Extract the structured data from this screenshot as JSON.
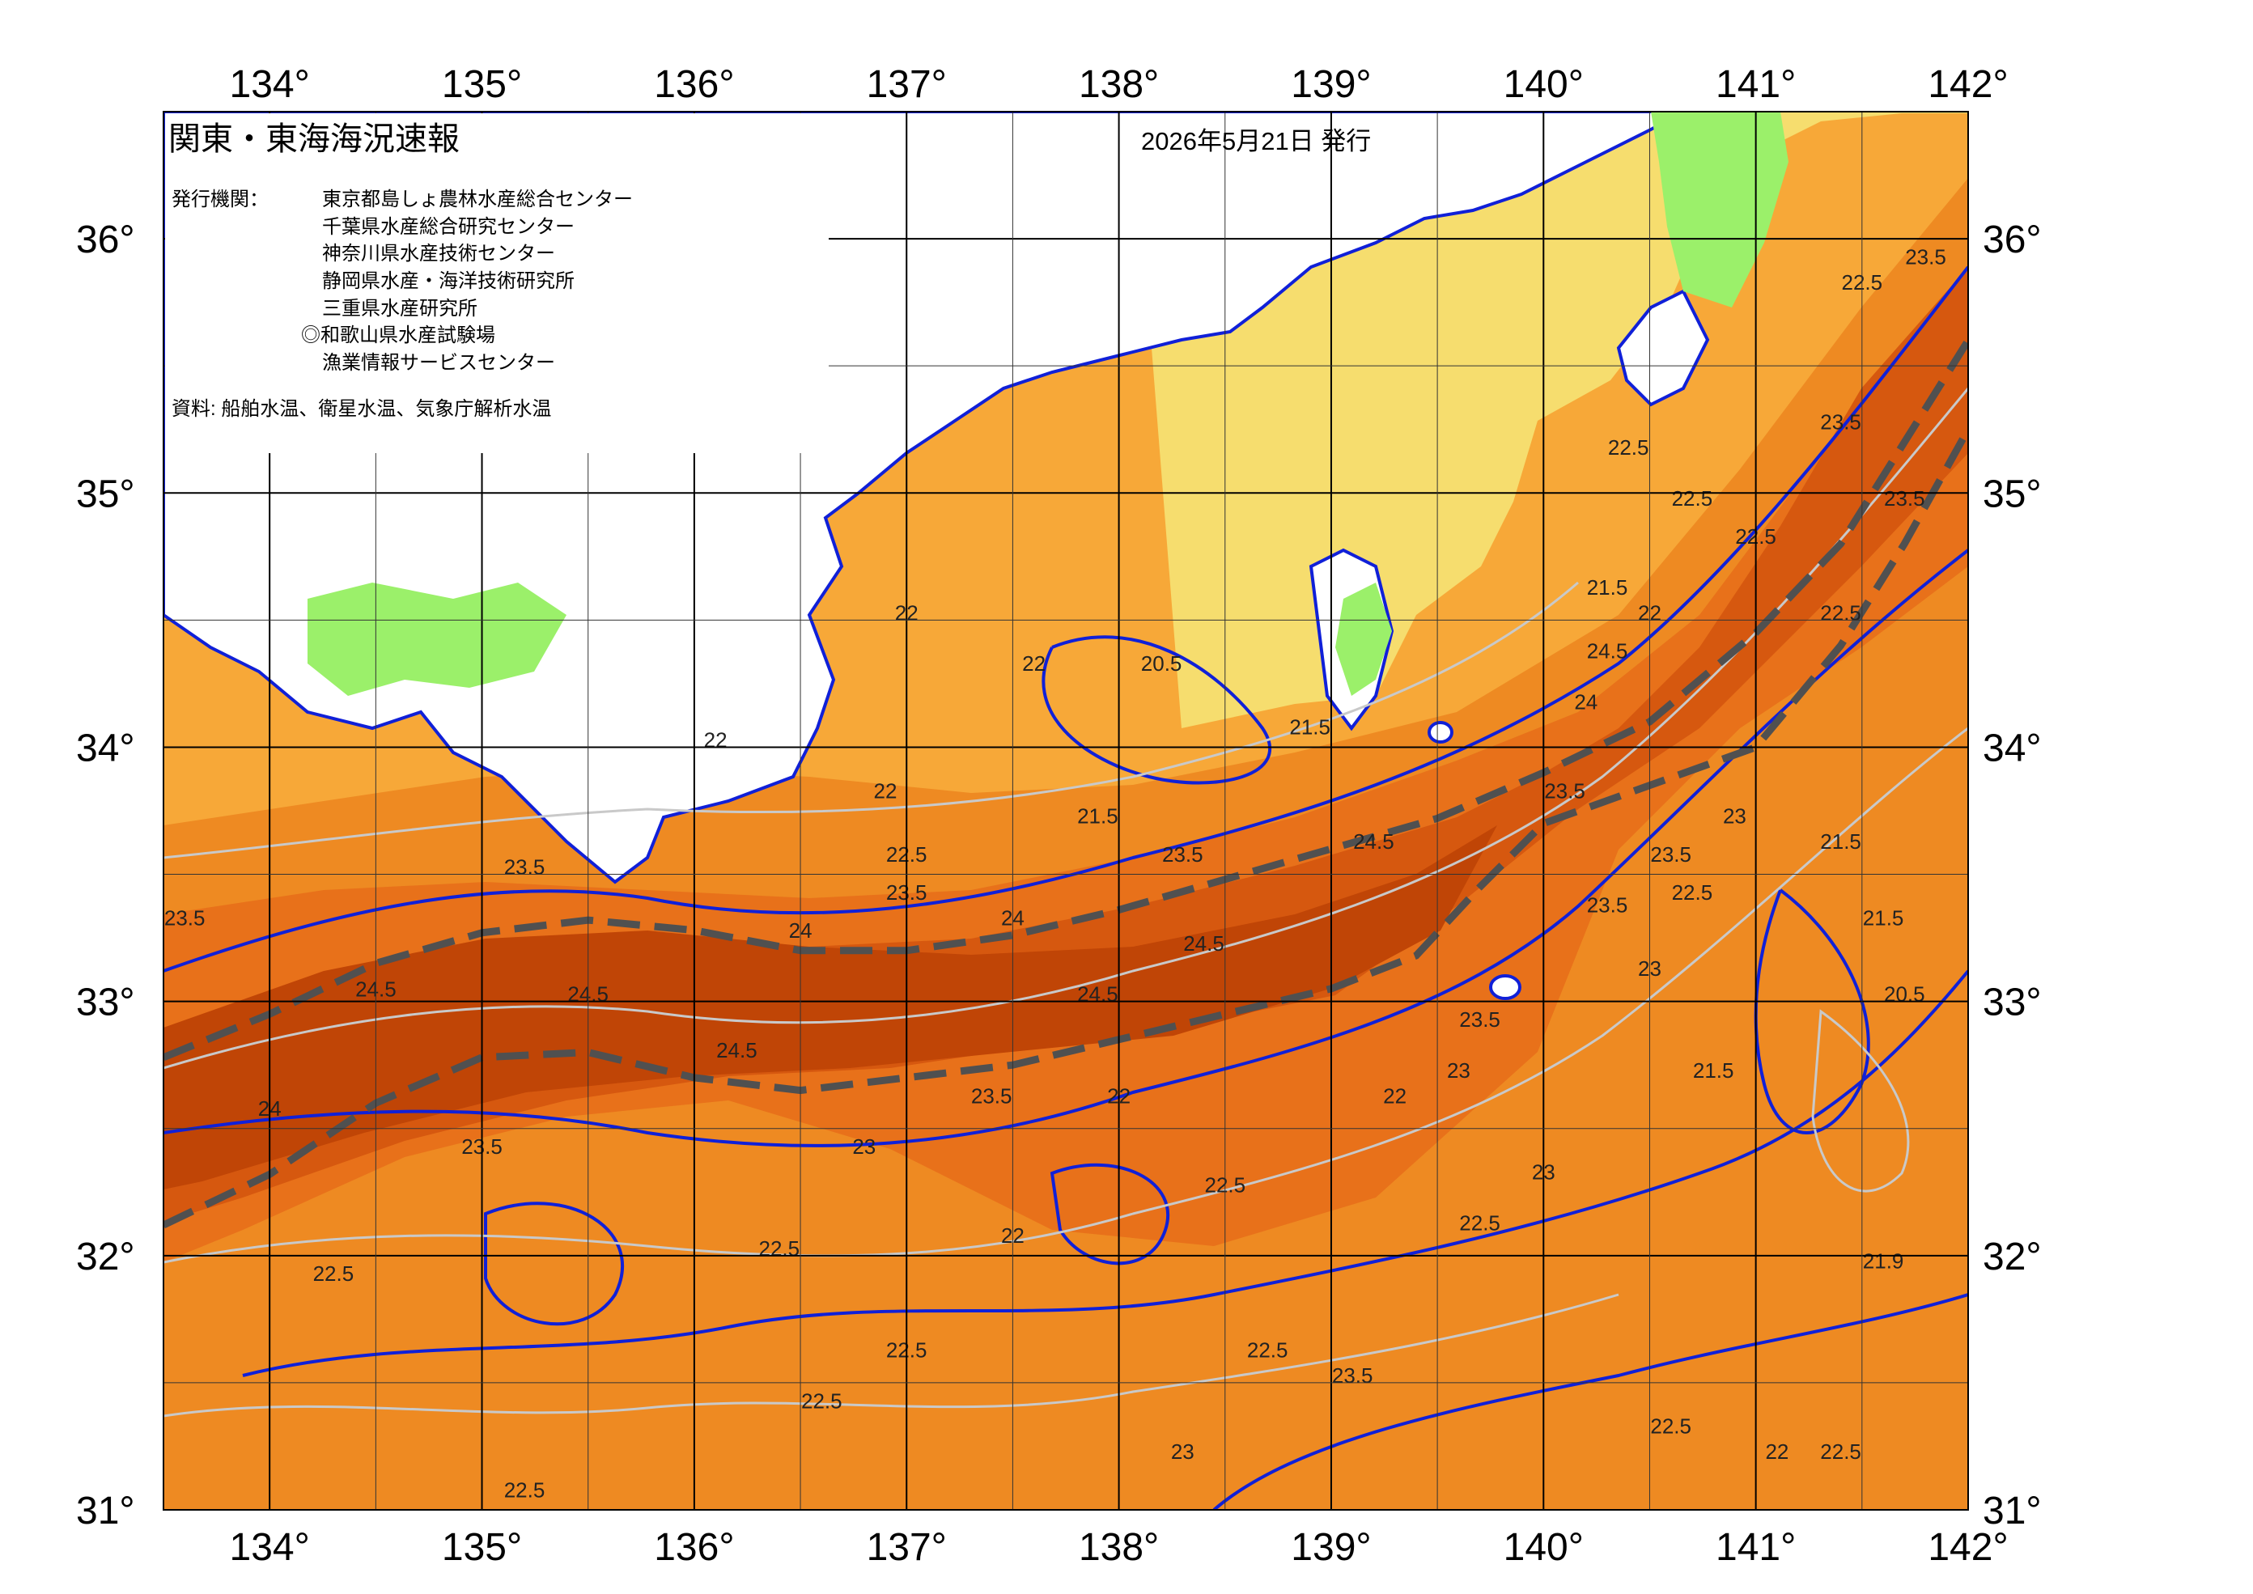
{
  "title": "関東・東海海況速報",
  "issue_date": "2026年5月21日 発行",
  "publisher": {
    "label": "発行機関：",
    "agencies": [
      "東京都島しょ農林水産総合センター",
      "千葉県水産総合研究センター",
      "神奈川県水産技術センター",
      "静岡県水産・海洋技術研究所",
      "三重県水産研究所",
      "◎和歌山県水産試験場",
      "漁業情報サービスセンター"
    ]
  },
  "source": "資料: 船舶水温、衛星水温、気象庁解析水温",
  "axes": {
    "lon_ticks": [
      "134°",
      "135°",
      "136°",
      "137°",
      "138°",
      "139°",
      "140°",
      "141°",
      "142°"
    ],
    "lat_ticks": [
      "36°",
      "35°",
      "34°",
      "33°",
      "32°",
      "31°"
    ]
  },
  "colors": {
    "land": "#ffffff",
    "sst_20": "#9bf06a",
    "sst_21": "#f6dd6e",
    "sst_22": "#f7a838",
    "sst_23": "#ee8a22",
    "sst_235": "#e8711a",
    "sst_24": "#d6580f",
    "sst_245": "#c04506",
    "contour_1deg": "#1020d8",
    "contour_half": "#c9c9c9",
    "kuroshio_axis": "#505050"
  },
  "contour_labels": [
    {
      "text": "23.5",
      "lon": 133.6,
      "lat": 33.3
    },
    {
      "text": "24.5",
      "lon": 134.5,
      "lat": 33.02
    },
    {
      "text": "24.5",
      "lon": 135.5,
      "lat": 33.0
    },
    {
      "text": "24",
      "lon": 134.0,
      "lat": 32.55
    },
    {
      "text": "23.5",
      "lon": 135.0,
      "lat": 32.4
    },
    {
      "text": "22.5",
      "lon": 134.3,
      "lat": 31.9
    },
    {
      "text": "24.5",
      "lon": 136.2,
      "lat": 32.78
    },
    {
      "text": "23.5",
      "lon": 135.2,
      "lat": 33.5
    },
    {
      "text": "24",
      "lon": 136.5,
      "lat": 33.25
    },
    {
      "text": "24",
      "lon": 137.5,
      "lat": 33.3
    },
    {
      "text": "24.5",
      "lon": 137.9,
      "lat": 33.0
    },
    {
      "text": "23.5",
      "lon": 137.4,
      "lat": 32.6
    },
    {
      "text": "23",
      "lon": 136.8,
      "lat": 32.4
    },
    {
      "text": "22.5",
      "lon": 136.4,
      "lat": 32.0
    },
    {
      "text": "22",
      "lon": 137.5,
      "lat": 32.05
    },
    {
      "text": "22.5",
      "lon": 137.0,
      "lat": 31.6
    },
    {
      "text": "22.5",
      "lon": 136.6,
      "lat": 31.4
    },
    {
      "text": "22.5",
      "lon": 135.2,
      "lat": 31.05
    },
    {
      "text": "22",
      "lon": 138.0,
      "lat": 32.6
    },
    {
      "text": "22.5",
      "lon": 138.5,
      "lat": 32.25
    },
    {
      "text": "22",
      "lon": 139.3,
      "lat": 32.6
    },
    {
      "text": "23",
      "lon": 139.6,
      "lat": 32.7
    },
    {
      "text": "22.5",
      "lon": 139.7,
      "lat": 32.1
    },
    {
      "text": "23",
      "lon": 140.0,
      "lat": 32.3
    },
    {
      "text": "22.5",
      "lon": 138.7,
      "lat": 31.6
    },
    {
      "text": "23.5",
      "lon": 139.1,
      "lat": 31.5
    },
    {
      "text": "23",
      "lon": 138.3,
      "lat": 31.2
    },
    {
      "text": "22.5",
      "lon": 140.6,
      "lat": 31.3
    },
    {
      "text": "22",
      "lon": 141.1,
      "lat": 31.2
    },
    {
      "text": "22.5",
      "lon": 141.4,
      "lat": 31.2
    },
    {
      "text": "21.9",
      "lon": 141.6,
      "lat": 31.95
    },
    {
      "text": "21.5",
      "lon": 140.8,
      "lat": 32.7
    },
    {
      "text": "20.5",
      "lon": 141.7,
      "lat": 33.0
    },
    {
      "text": "21.5",
      "lon": 141.6,
      "lat": 33.3
    },
    {
      "text": "21.5",
      "lon": 141.4,
      "lat": 33.6
    },
    {
      "text": "23.5",
      "lon": 140.3,
      "lat": 33.35
    },
    {
      "text": "23",
      "lon": 140.5,
      "lat": 33.1
    },
    {
      "text": "23.5",
      "lon": 140.6,
      "lat": 33.55
    },
    {
      "text": "22.5",
      "lon": 140.7,
      "lat": 33.4
    },
    {
      "text": "23",
      "lon": 140.9,
      "lat": 33.7
    },
    {
      "text": "23.5",
      "lon": 138.3,
      "lat": 33.55
    },
    {
      "text": "21.5",
      "lon": 137.9,
      "lat": 33.7
    },
    {
      "text": "22.5",
      "lon": 137.0,
      "lat": 33.55
    },
    {
      "text": "23.5",
      "lon": 137.0,
      "lat": 33.4
    },
    {
      "text": "22",
      "lon": 136.9,
      "lat": 33.8
    },
    {
      "text": "22",
      "lon": 137.6,
      "lat": 34.3
    },
    {
      "text": "22",
      "lon": 136.1,
      "lat": 34.0
    },
    {
      "text": "22",
      "lon": 137.0,
      "lat": 34.5
    },
    {
      "text": "20.5",
      "lon": 138.2,
      "lat": 34.3
    },
    {
      "text": "21.5",
      "lon": 138.9,
      "lat": 34.05
    },
    {
      "text": "21.5",
      "lon": 140.3,
      "lat": 34.6
    },
    {
      "text": "22",
      "lon": 140.5,
      "lat": 34.5
    },
    {
      "text": "24.5",
      "lon": 140.3,
      "lat": 34.35
    },
    {
      "text": "24",
      "lon": 140.2,
      "lat": 34.15
    },
    {
      "text": "22.5",
      "lon": 140.7,
      "lat": 34.95
    },
    {
      "text": "22.5",
      "lon": 140.4,
      "lat": 35.15
    },
    {
      "text": "23.5",
      "lon": 141.4,
      "lat": 35.25
    },
    {
      "text": "23.5",
      "lon": 141.7,
      "lat": 34.95
    },
    {
      "text": "22.5",
      "lon": 141.4,
      "lat": 34.5
    },
    {
      "text": "22.5",
      "lon": 141.5,
      "lat": 35.8
    },
    {
      "text": "23.5",
      "lon": 141.8,
      "lat": 35.9
    },
    {
      "text": "24.5",
      "lon": 138.4,
      "lat": 33.2
    },
    {
      "text": "24.5",
      "lon": 139.2,
      "lat": 33.6
    },
    {
      "text": "23.5",
      "lon": 139.7,
      "lat": 32.9
    },
    {
      "text": "23.5",
      "lon": 140.1,
      "lat": 33.8
    },
    {
      "text": "22.5",
      "lon": 141.0,
      "lat": 34.8
    }
  ],
  "chart_data": {
    "type": "map",
    "extent": {
      "lon": [
        133.5,
        142.0
      ],
      "lat": [
        31.0,
        36.5
      ]
    },
    "legend_units": "°C",
    "kuroshio_north_edge": [
      [
        133.5,
        32.78
      ],
      [
        134.0,
        32.95
      ],
      [
        134.5,
        33.15
      ],
      [
        135.0,
        33.27
      ],
      [
        135.5,
        33.32
      ],
      [
        136.0,
        33.28
      ],
      [
        136.5,
        33.2
      ],
      [
        137.0,
        33.2
      ],
      [
        137.5,
        33.26
      ],
      [
        138.0,
        33.36
      ],
      [
        138.5,
        33.48
      ],
      [
        139.0,
        33.6
      ],
      [
        139.5,
        33.72
      ],
      [
        140.0,
        33.9
      ],
      [
        140.5,
        34.1
      ],
      [
        141.0,
        34.45
      ],
      [
        141.4,
        34.8
      ],
      [
        141.7,
        35.2
      ],
      [
        142.0,
        35.6
      ]
    ],
    "kuroshio_south_edge": [
      [
        133.5,
        32.12
      ],
      [
        134.0,
        32.32
      ],
      [
        134.5,
        32.6
      ],
      [
        135.0,
        32.78
      ],
      [
        135.5,
        32.8
      ],
      [
        136.0,
        32.7
      ],
      [
        136.5,
        32.65
      ],
      [
        137.0,
        32.7
      ],
      [
        137.5,
        32.75
      ],
      [
        138.0,
        32.85
      ],
      [
        138.5,
        32.95
      ],
      [
        139.0,
        33.05
      ],
      [
        139.4,
        33.18
      ],
      [
        139.7,
        33.45
      ],
      [
        140.0,
        33.7
      ],
      [
        140.5,
        33.85
      ],
      [
        141.0,
        34.0
      ],
      [
        141.4,
        34.4
      ],
      [
        141.7,
        34.8
      ],
      [
        142.0,
        35.25
      ]
    ]
  }
}
